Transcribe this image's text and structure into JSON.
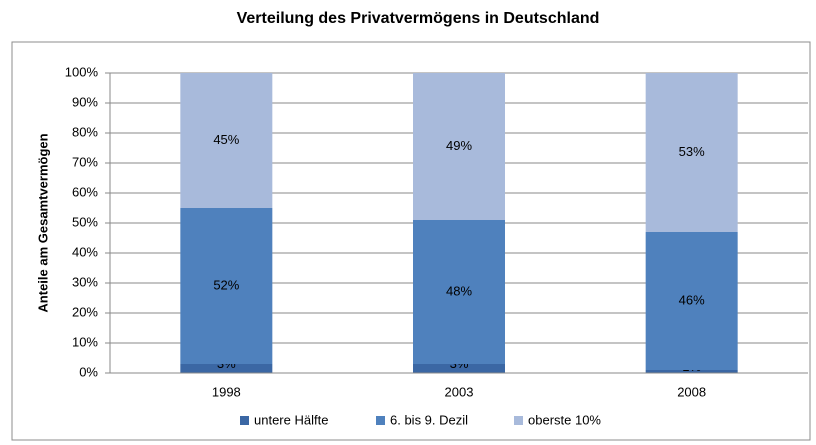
{
  "chart_data": {
    "type": "stacked_bar",
    "title": "Verteilung des Privatvermögens in Deutschland",
    "y_axis_label": "Anteile am Gesamtvermögen",
    "categories": [
      "1998",
      "2003",
      "2008"
    ],
    "series": [
      {
        "name": "untere Hälfte",
        "color": "#3b67a4",
        "values": [
          3,
          3,
          1
        ],
        "value_labels": [
          "3%",
          "3%",
          "1%"
        ]
      },
      {
        "name": "6. bis 9. Dezil",
        "color": "#4f81bd",
        "values": [
          52,
          48,
          46
        ],
        "value_labels": [
          "52%",
          "48%",
          "46%"
        ]
      },
      {
        "name": "oberste 10%",
        "color": "#a8badb",
        "values": [
          45,
          49,
          53
        ],
        "value_labels": [
          "45%",
          "49%",
          "53%"
        ]
      }
    ],
    "ylim": [
      0,
      100
    ],
    "yticks": [
      {
        "value": 0,
        "label": "0%"
      },
      {
        "value": 10,
        "label": "10%"
      },
      {
        "value": 20,
        "label": "20%"
      },
      {
        "value": 30,
        "label": "30%"
      },
      {
        "value": 40,
        "label": "40%"
      },
      {
        "value": 50,
        "label": "50%"
      },
      {
        "value": 60,
        "label": "60%"
      },
      {
        "value": 70,
        "label": "70%"
      },
      {
        "value": 80,
        "label": "80%"
      },
      {
        "value": 90,
        "label": "90%"
      },
      {
        "value": 100,
        "label": "100%"
      }
    ],
    "grid": true,
    "legend": "bottom"
  }
}
